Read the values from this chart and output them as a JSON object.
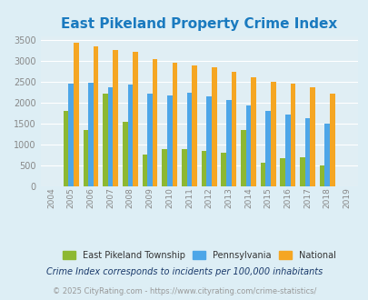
{
  "title": "East Pikeland Property Crime Index",
  "years": [
    2004,
    2005,
    2006,
    2007,
    2008,
    2009,
    2010,
    2011,
    2012,
    2013,
    2014,
    2015,
    2016,
    2017,
    2018,
    2019
  ],
  "year_labels": [
    "2004",
    "2005",
    "2006",
    "2007",
    "2008",
    "2009",
    "2010",
    "2011",
    "2012",
    "2013",
    "2014",
    "2015",
    "2016",
    "2017",
    "2018",
    "2019"
  ],
  "east_pikeland": [
    0,
    1800,
    1350,
    2225,
    1550,
    750,
    880,
    880,
    840,
    800,
    1350,
    550,
    660,
    700,
    490,
    0
  ],
  "pennsylvania": [
    0,
    2460,
    2470,
    2360,
    2440,
    2210,
    2180,
    2230,
    2160,
    2070,
    1940,
    1800,
    1720,
    1630,
    1490,
    0
  ],
  "national": [
    0,
    3440,
    3350,
    3260,
    3210,
    3040,
    2950,
    2900,
    2860,
    2730,
    2600,
    2500,
    2460,
    2380,
    2210,
    0
  ],
  "bar_width": 0.26,
  "colors": {
    "east_pikeland": "#8db832",
    "pennsylvania": "#4da6e8",
    "national": "#f5a623"
  },
  "ylim": [
    0,
    3600
  ],
  "yticks": [
    0,
    500,
    1000,
    1500,
    2000,
    2500,
    3000,
    3500
  ],
  "background_color": "#ddeef5",
  "plot_bg": "#e0eef4",
  "title_color": "#1a7abf",
  "title_fontsize": 11,
  "legend_labels": [
    "East Pikeland Township",
    "Pennsylvania",
    "National"
  ],
  "legend_text_color": "#333333",
  "footnote1": "Crime Index corresponds to incidents per 100,000 inhabitants",
  "footnote2": "© 2025 CityRating.com - https://www.cityrating.com/crime-statistics/",
  "footnote_color1": "#1a3a6b",
  "footnote_color2": "#999999",
  "tick_color": "#888888",
  "grid_color": "#ffffff"
}
